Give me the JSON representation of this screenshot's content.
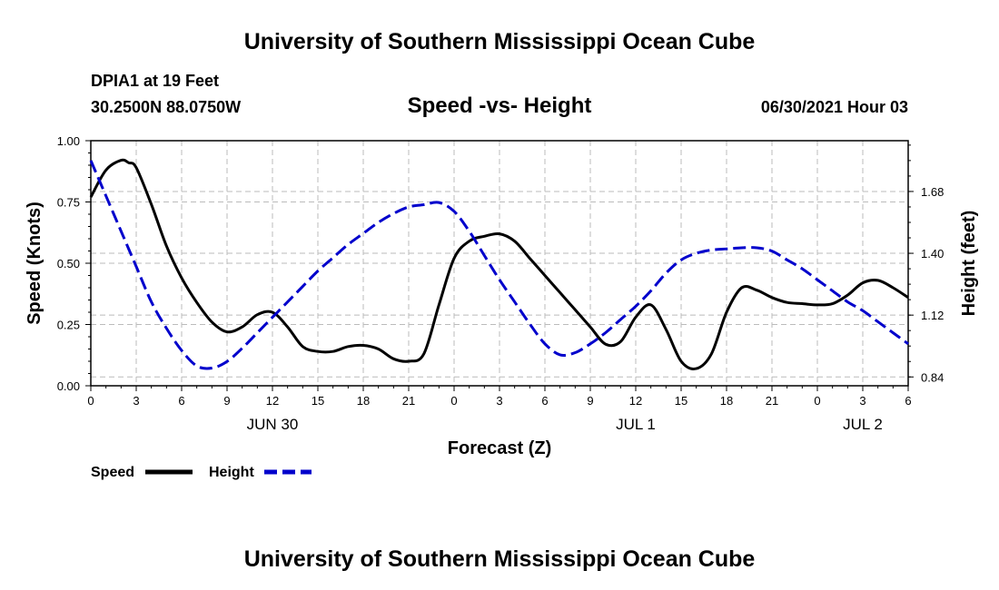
{
  "header": {
    "title": "University of Southern Mississippi Ocean Cube",
    "station": "DPIA1 at 19 Feet",
    "coords": "30.2500N  88.0750W",
    "timestamp": "06/30/2021 Hour 03"
  },
  "footer": {
    "title": "University of Southern Mississippi Ocean Cube"
  },
  "colors": {
    "speed": "#000000",
    "height": "#0000cc",
    "grid": "#bbbbbb"
  },
  "chart_data": {
    "type": "line",
    "title": "Speed -vs- Height",
    "xlabel": "Forecast (Z)",
    "ylabel": "Speed (Knots)",
    "y2label": "Height (feet)",
    "grid": true,
    "x_range": [
      0,
      54
    ],
    "x_tick_values": [
      0,
      3,
      6,
      9,
      12,
      15,
      18,
      21,
      24,
      27,
      30,
      33,
      36,
      39,
      42,
      45,
      48,
      51,
      54
    ],
    "x_tick_labels": [
      "0",
      "3",
      "6",
      "9",
      "12",
      "15",
      "18",
      "21",
      "0",
      "3",
      "6",
      "9",
      "12",
      "15",
      "18",
      "21",
      "0",
      "3",
      "6"
    ],
    "date_labels": [
      {
        "text": "JUN 30",
        "x": 12
      },
      {
        "text": "JUL 1",
        "x": 36
      },
      {
        "text": "JUL 2",
        "x": 51
      }
    ],
    "y_range": [
      0,
      1.0
    ],
    "y_ticks": [
      "0.00",
      "0.25",
      "0.50",
      "0.75",
      "1.00"
    ],
    "y2_range": [
      0.8,
      1.91
    ],
    "y2_ticks": [
      "0.84",
      "1.12",
      "1.40",
      "1.68"
    ],
    "legend": [
      "Speed",
      "Height"
    ],
    "legend_position": "bottom-left",
    "series": [
      {
        "name": "Speed",
        "axis": "left",
        "style": "solid",
        "x": [
          0,
          1,
          2,
          2.5,
          3,
          4,
          5,
          6,
          7,
          8,
          9,
          10,
          11,
          12,
          13,
          14,
          15,
          16,
          17,
          18,
          19,
          20,
          21,
          22,
          23,
          24,
          25,
          26,
          27,
          28,
          29,
          30,
          31,
          32,
          33,
          34,
          35,
          36,
          37,
          38,
          39,
          40,
          41,
          42,
          43,
          44,
          45,
          46,
          47,
          48,
          49,
          50,
          51,
          52,
          53,
          54
        ],
        "values": [
          0.77,
          0.88,
          0.92,
          0.91,
          0.89,
          0.74,
          0.57,
          0.44,
          0.34,
          0.26,
          0.22,
          0.24,
          0.29,
          0.3,
          0.24,
          0.16,
          0.14,
          0.14,
          0.16,
          0.165,
          0.15,
          0.11,
          0.1,
          0.13,
          0.33,
          0.52,
          0.59,
          0.61,
          0.62,
          0.59,
          0.52,
          0.45,
          0.38,
          0.31,
          0.24,
          0.17,
          0.18,
          0.28,
          0.33,
          0.23,
          0.1,
          0.07,
          0.13,
          0.3,
          0.4,
          0.39,
          0.36,
          0.34,
          0.335,
          0.33,
          0.335,
          0.37,
          0.42,
          0.43,
          0.4,
          0.36
        ]
      },
      {
        "name": "Height",
        "axis": "right",
        "style": "dashed",
        "x": [
          0,
          1,
          2,
          3,
          4,
          5,
          6,
          7,
          8,
          9,
          10,
          11,
          12,
          13,
          14,
          15,
          16,
          17,
          18,
          19,
          20,
          21,
          22,
          23,
          24,
          25,
          26,
          27,
          28,
          29,
          30,
          31,
          32,
          33,
          34,
          35,
          36,
          37,
          38,
          39,
          40,
          41,
          42,
          43,
          44,
          45,
          46,
          47,
          48,
          49,
          50,
          51,
          52,
          53,
          54
        ],
        "values": [
          1.82,
          1.66,
          1.5,
          1.34,
          1.18,
          1.06,
          0.96,
          0.89,
          0.88,
          0.91,
          0.97,
          1.04,
          1.11,
          1.18,
          1.25,
          1.32,
          1.38,
          1.44,
          1.49,
          1.54,
          1.58,
          1.61,
          1.62,
          1.63,
          1.59,
          1.5,
          1.39,
          1.28,
          1.18,
          1.08,
          0.99,
          0.94,
          0.95,
          0.99,
          1.04,
          1.1,
          1.16,
          1.23,
          1.31,
          1.37,
          1.4,
          1.415,
          1.42,
          1.425,
          1.425,
          1.41,
          1.37,
          1.33,
          1.28,
          1.23,
          1.18,
          1.14,
          1.09,
          1.04,
          0.99
        ]
      }
    ]
  }
}
